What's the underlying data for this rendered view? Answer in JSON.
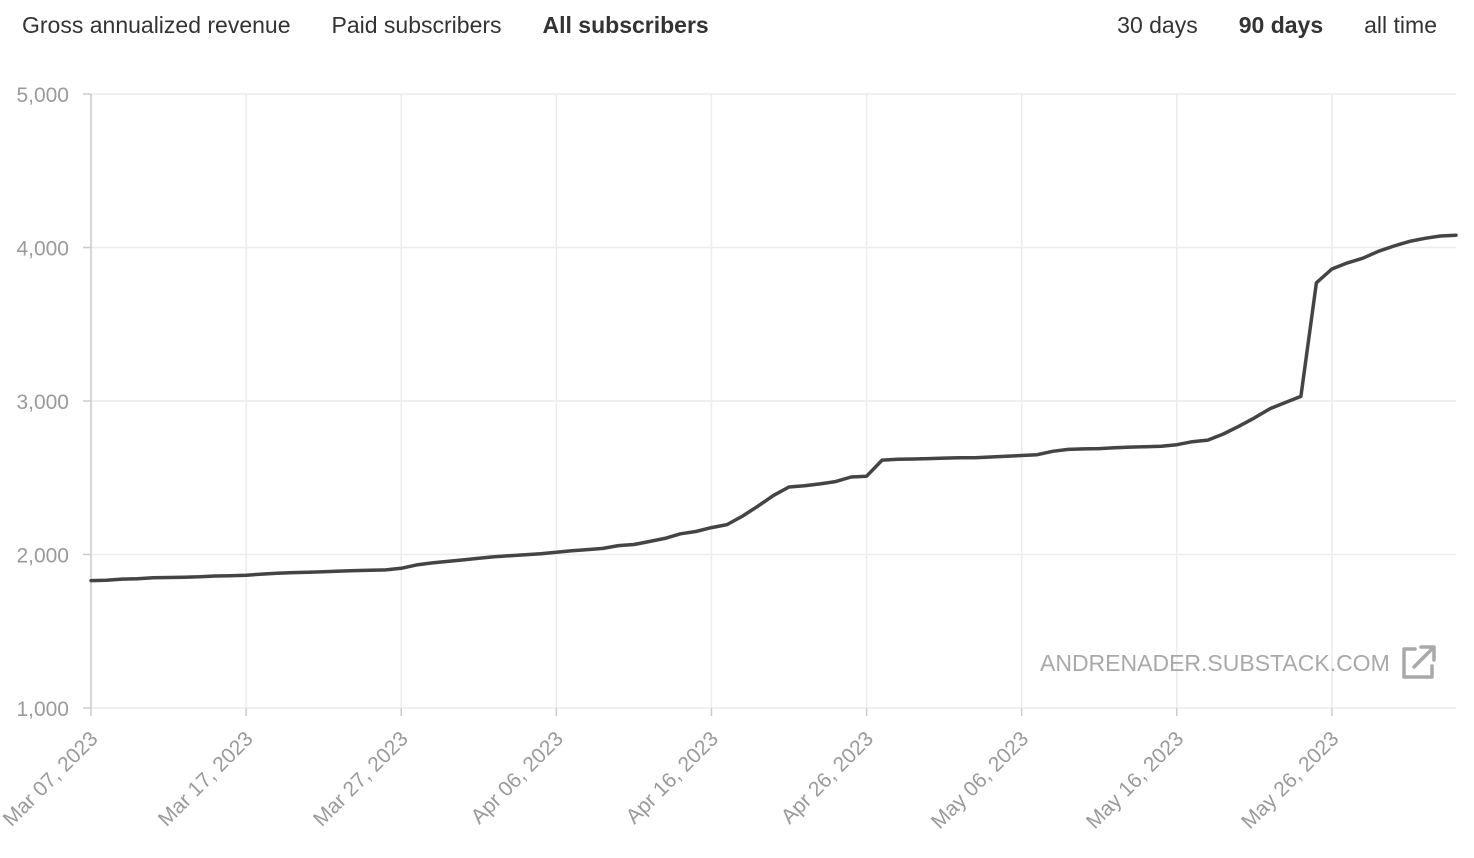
{
  "tabs": {
    "metrics": [
      {
        "label": "Gross annualized revenue",
        "active": false
      },
      {
        "label": "Paid subscribers",
        "active": false
      },
      {
        "label": "All subscribers",
        "active": true
      }
    ],
    "ranges": [
      {
        "label": "30 days",
        "active": false
      },
      {
        "label": "90 days",
        "active": true
      },
      {
        "label": "all time",
        "active": false
      }
    ]
  },
  "watermark": {
    "text": "ANDRENADER.SUBSTACK.COM",
    "icon": "external-link-icon"
  },
  "colors": {
    "line": "#444444",
    "grid": "#ececec",
    "tick_text": "#9a9a9a",
    "watermark": "#a9a9a9"
  },
  "chart_data": {
    "type": "line",
    "title": "",
    "xlabel": "",
    "ylabel": "",
    "ylim": [
      1000,
      5000
    ],
    "yticks": [
      "1,000",
      "2,000",
      "3,000",
      "4,000",
      "5,000"
    ],
    "ytick_values": [
      1000,
      2000,
      3000,
      4000,
      5000
    ],
    "xlim": [
      "2023-03-07",
      "2023-06-03"
    ],
    "xticks": [
      "Mar 07, 2023",
      "Mar 17, 2023",
      "Mar 27, 2023",
      "Apr 06, 2023",
      "Apr 16, 2023",
      "Apr 26, 2023",
      "May 06, 2023",
      "May 16, 2023",
      "May 26, 2023"
    ],
    "xtick_dates": [
      "2023-03-07",
      "2023-03-17",
      "2023-03-27",
      "2023-04-06",
      "2023-04-16",
      "2023-04-26",
      "2023-05-06",
      "2023-05-16",
      "2023-05-26"
    ],
    "grid": true,
    "series": [
      {
        "x": [
          "2023-03-07",
          "2023-03-08",
          "2023-03-09",
          "2023-03-10",
          "2023-03-11",
          "2023-03-12",
          "2023-03-13",
          "2023-03-14",
          "2023-03-15",
          "2023-03-16",
          "2023-03-17",
          "2023-03-18",
          "2023-03-19",
          "2023-03-20",
          "2023-03-21",
          "2023-03-22",
          "2023-03-23",
          "2023-03-24",
          "2023-03-25",
          "2023-03-26",
          "2023-03-27",
          "2023-03-28",
          "2023-03-29",
          "2023-03-30",
          "2023-03-31",
          "2023-04-01",
          "2023-04-02",
          "2023-04-03",
          "2023-04-04",
          "2023-04-05",
          "2023-04-06",
          "2023-04-07",
          "2023-04-08",
          "2023-04-09",
          "2023-04-10",
          "2023-04-11",
          "2023-04-12",
          "2023-04-13",
          "2023-04-14",
          "2023-04-15",
          "2023-04-16",
          "2023-04-17",
          "2023-04-18",
          "2023-04-19",
          "2023-04-20",
          "2023-04-21",
          "2023-04-22",
          "2023-04-23",
          "2023-04-24",
          "2023-04-25",
          "2023-04-26",
          "2023-04-27",
          "2023-04-28",
          "2023-04-29",
          "2023-04-30",
          "2023-05-01",
          "2023-05-02",
          "2023-05-03",
          "2023-05-04",
          "2023-05-05",
          "2023-05-06",
          "2023-05-07",
          "2023-05-08",
          "2023-05-09",
          "2023-05-10",
          "2023-05-11",
          "2023-05-12",
          "2023-05-13",
          "2023-05-14",
          "2023-05-15",
          "2023-05-16",
          "2023-05-17",
          "2023-05-18",
          "2023-05-19",
          "2023-05-20",
          "2023-05-21",
          "2023-05-22",
          "2023-05-23",
          "2023-05-24",
          "2023-05-25",
          "2023-05-26",
          "2023-05-27",
          "2023-05-28",
          "2023-05-29",
          "2023-05-30",
          "2023-05-31",
          "2023-06-01",
          "2023-06-02",
          "2023-06-03"
        ],
        "values": [
          1830,
          1832,
          1840,
          1842,
          1848,
          1850,
          1852,
          1855,
          1860,
          1862,
          1865,
          1872,
          1878,
          1882,
          1885,
          1888,
          1892,
          1895,
          1898,
          1900,
          1910,
          1932,
          1945,
          1955,
          1965,
          1975,
          1985,
          1992,
          1998,
          2005,
          2015,
          2025,
          2032,
          2040,
          2058,
          2065,
          2085,
          2105,
          2135,
          2150,
          2175,
          2195,
          2250,
          2315,
          2385,
          2440,
          2448,
          2460,
          2475,
          2505,
          2510,
          2615,
          2620,
          2622,
          2625,
          2628,
          2630,
          2630,
          2635,
          2640,
          2645,
          2650,
          2672,
          2685,
          2688,
          2690,
          2695,
          2700,
          2702,
          2705,
          2715,
          2735,
          2745,
          2785,
          2835,
          2890,
          2950,
          2990,
          3030,
          3770,
          3860,
          3900,
          3930,
          3975,
          4010,
          4040,
          4060,
          4075,
          4080
        ]
      }
    ]
  }
}
